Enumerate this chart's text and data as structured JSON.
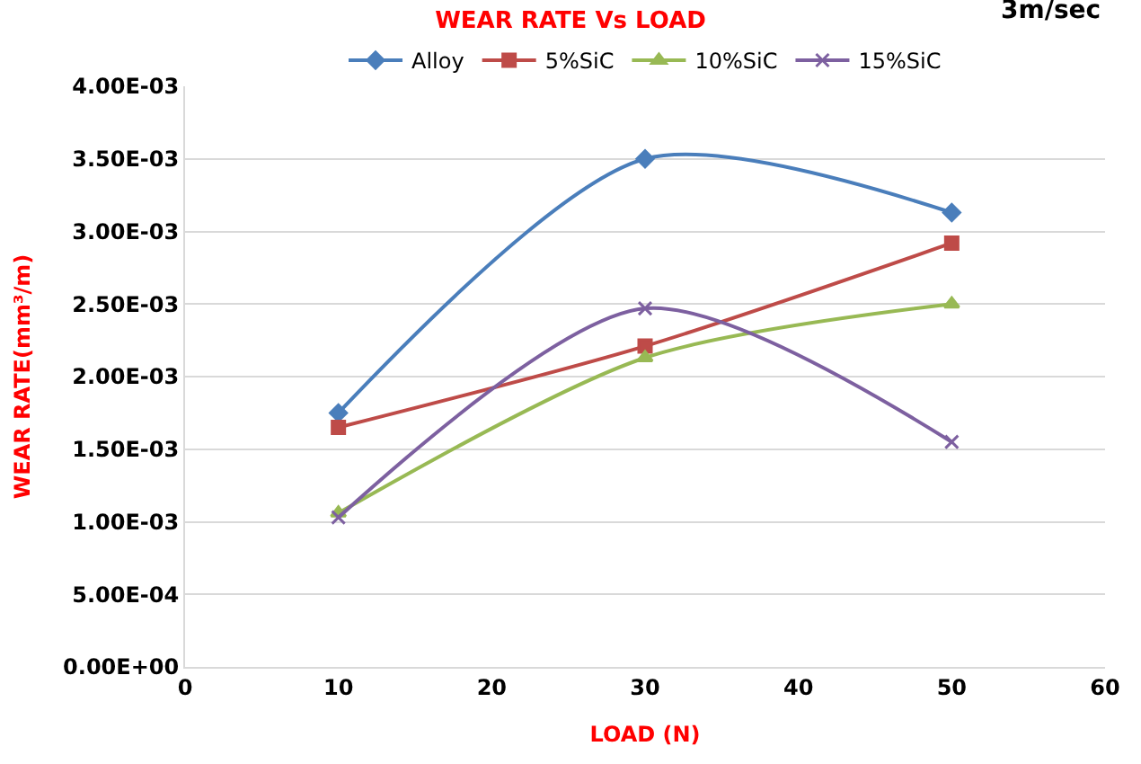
{
  "chart_data": {
    "type": "line",
    "title": "WEAR RATE Vs LOAD",
    "xlabel": "LOAD (N)",
    "ylabel": "WEAR RATE(mm³/m)",
    "annotations": [
      "3m/sec"
    ],
    "x": [
      10,
      30,
      50
    ],
    "series": [
      {
        "name": "Alloy",
        "color": "#4a7ebb",
        "marker": "diamond",
        "values": [
          0.00175,
          0.0035,
          0.00313
        ]
      },
      {
        "name": "5%SiC",
        "color": "#be4b48",
        "marker": "square",
        "values": [
          0.00165,
          0.00221,
          0.00292
        ]
      },
      {
        "name": "10%SiC",
        "color": "#98b954",
        "marker": "triangle",
        "values": [
          0.00106,
          0.00213,
          0.0025
        ]
      },
      {
        "name": "15%SiC",
        "color": "#7d60a0",
        "marker": "cross",
        "values": [
          0.00103,
          0.00247,
          0.00155
        ]
      }
    ],
    "xlim": [
      0,
      60
    ],
    "xticks": [
      0,
      10,
      20,
      30,
      40,
      50,
      60
    ],
    "ylim": [
      0,
      0.004
    ],
    "yticks": [
      {
        "value": 0,
        "label": "0.00E+00"
      },
      {
        "value": 0.0005,
        "label": "5.00E-04"
      },
      {
        "value": 0.001,
        "label": "1.00E-03"
      },
      {
        "value": 0.0015,
        "label": "1.50E-03"
      },
      {
        "value": 0.002,
        "label": "2.00E-03"
      },
      {
        "value": 0.0025,
        "label": "2.50E-03"
      },
      {
        "value": 0.003,
        "label": "3.00E-03"
      },
      {
        "value": 0.0035,
        "label": "3.50E-03"
      },
      {
        "value": 0.004,
        "label": "4.00E-03"
      }
    ],
    "grid": "y",
    "legend": "top",
    "line_style": "solid"
  }
}
